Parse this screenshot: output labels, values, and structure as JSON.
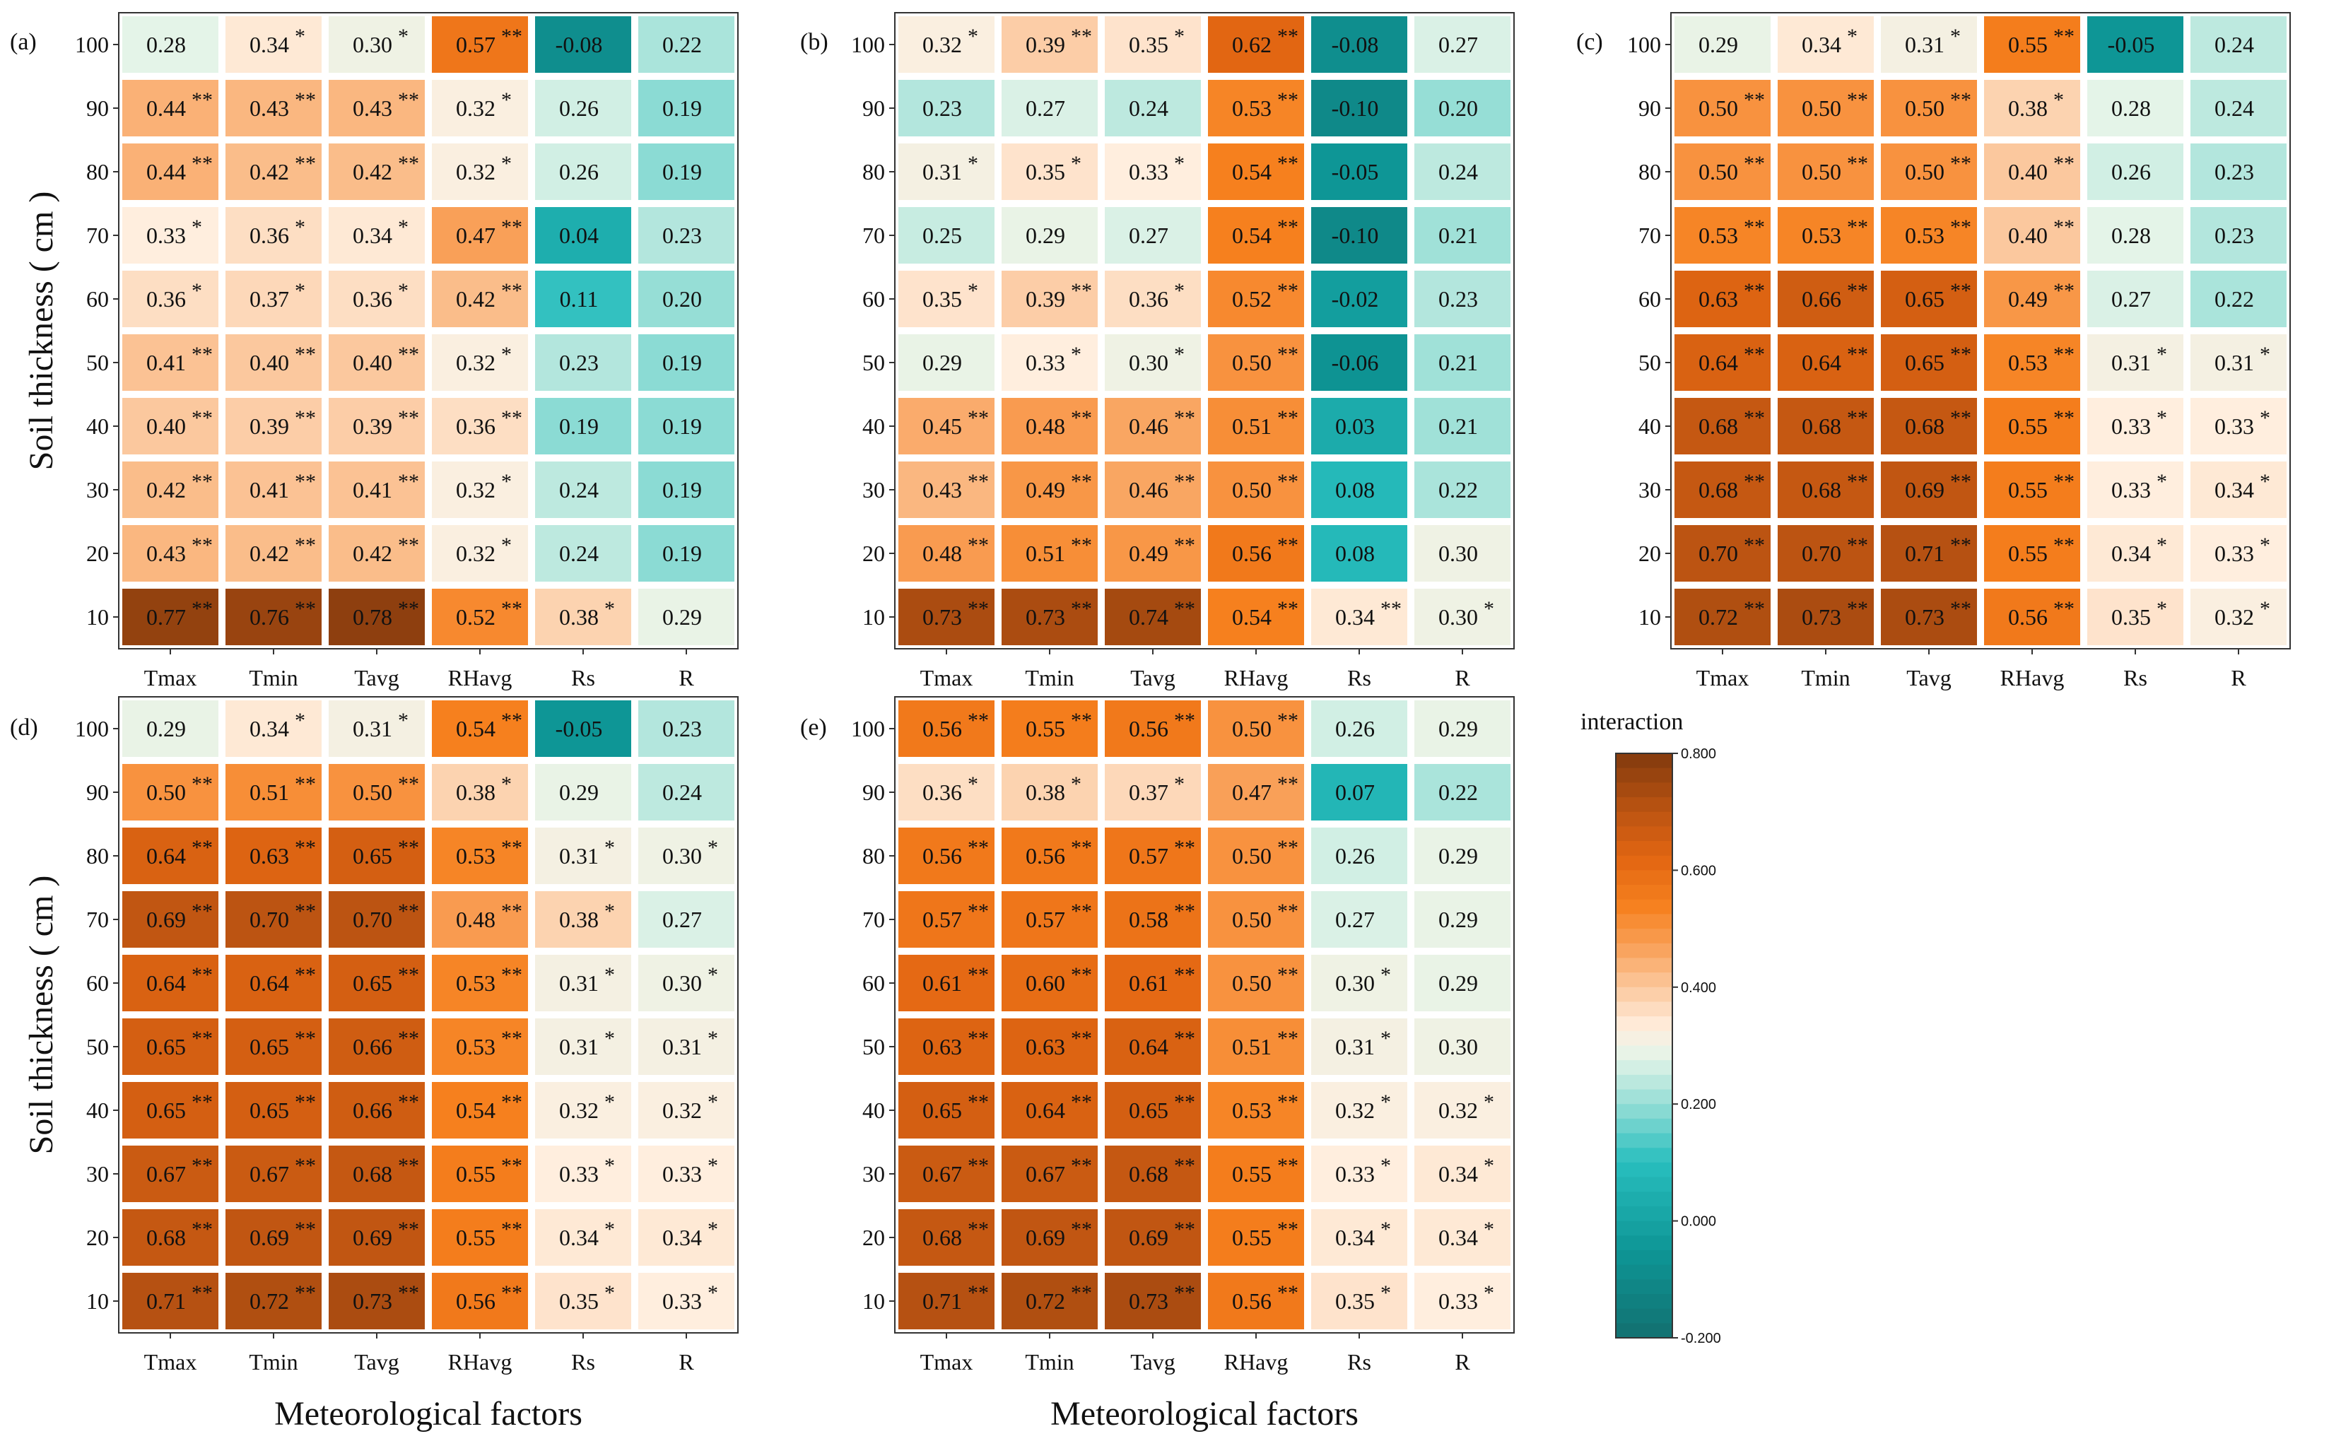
{
  "chart_data": {
    "type": "heatmap",
    "row_labels": [
      "100",
      "90",
      "80",
      "70",
      "60",
      "50",
      "40",
      "30",
      "20",
      "10"
    ],
    "col_labels": [
      "Tmax",
      "Tmin",
      "Tavg",
      "RHavg",
      "Rs",
      "R"
    ],
    "ylabel": "Soil thickness ( cm )",
    "xlabel": "Meteorological factors",
    "colorbar": {
      "title": "interaction",
      "ticks": [
        "0.800",
        "0.600",
        "0.400",
        "0.200",
        "0.000",
        "-0.200"
      ],
      "range": [
        -0.2,
        0.8
      ]
    },
    "panels": [
      {
        "label": "(a)",
        "values": [
          [
            "0.28",
            "0.34",
            "0.30",
            "0.57",
            "-0.08",
            "0.22"
          ],
          [
            "0.44",
            "0.43",
            "0.43",
            "0.32",
            "0.26",
            "0.19"
          ],
          [
            "0.44",
            "0.42",
            "0.42",
            "0.32",
            "0.26",
            "0.19"
          ],
          [
            "0.33",
            "0.36",
            "0.34",
            "0.47",
            "0.04",
            "0.23"
          ],
          [
            "0.36",
            "0.37",
            "0.36",
            "0.42",
            "0.11",
            "0.20"
          ],
          [
            "0.41",
            "0.40",
            "0.40",
            "0.32",
            "0.23",
            "0.19"
          ],
          [
            "0.40",
            "0.39",
            "0.39",
            "0.36",
            "0.19",
            "0.19"
          ],
          [
            "0.42",
            "0.41",
            "0.41",
            "0.32",
            "0.24",
            "0.19"
          ],
          [
            "0.43",
            "0.42",
            "0.42",
            "0.32",
            "0.24",
            "0.19"
          ],
          [
            "0.77",
            "0.76",
            "0.78",
            "0.52",
            "0.38",
            "0.29"
          ]
        ],
        "stars": [
          [
            "",
            "*",
            "*",
            "**",
            "",
            ""
          ],
          [
            "**",
            "**",
            "**",
            "*",
            "",
            ""
          ],
          [
            "**",
            "**",
            "**",
            "*",
            "",
            ""
          ],
          [
            "*",
            "*",
            "*",
            "**",
            "",
            ""
          ],
          [
            "*",
            "*",
            "*",
            "**",
            "",
            ""
          ],
          [
            "**",
            "**",
            "**",
            "*",
            "",
            ""
          ],
          [
            "**",
            "**",
            "**",
            "**",
            "",
            ""
          ],
          [
            "**",
            "**",
            "**",
            "*",
            "",
            ""
          ],
          [
            "**",
            "**",
            "**",
            "*",
            "",
            ""
          ],
          [
            "**",
            "**",
            "**",
            "**",
            "*",
            ""
          ]
        ]
      },
      {
        "label": "(b)",
        "values": [
          [
            "0.32",
            "0.39",
            "0.35",
            "0.62",
            "-0.08",
            "0.27"
          ],
          [
            "0.23",
            "0.27",
            "0.24",
            "0.53",
            "-0.10",
            "0.20"
          ],
          [
            "0.31",
            "0.35",
            "0.33",
            "0.54",
            "-0.05",
            "0.24"
          ],
          [
            "0.25",
            "0.29",
            "0.27",
            "0.54",
            "-0.10",
            "0.21"
          ],
          [
            "0.35",
            "0.39",
            "0.36",
            "0.52",
            "-0.02",
            "0.23"
          ],
          [
            "0.29",
            "0.33",
            "0.30",
            "0.50",
            "-0.06",
            "0.21"
          ],
          [
            "0.45",
            "0.48",
            "0.46",
            "0.51",
            "0.03",
            "0.21"
          ],
          [
            "0.43",
            "0.49",
            "0.46",
            "0.50",
            "0.08",
            "0.22"
          ],
          [
            "0.48",
            "0.51",
            "0.49",
            "0.56",
            "0.08",
            "0.30"
          ],
          [
            "0.73",
            "0.73",
            "0.74",
            "0.54",
            "0.34",
            "0.30"
          ]
        ],
        "stars": [
          [
            "*",
            "**",
            "*",
            "**",
            "",
            ""
          ],
          [
            "",
            "",
            "",
            "**",
            "",
            ""
          ],
          [
            "*",
            "*",
            "*",
            "**",
            "",
            ""
          ],
          [
            "",
            "",
            "",
            "**",
            "",
            ""
          ],
          [
            "*",
            "**",
            "*",
            "**",
            "",
            ""
          ],
          [
            "",
            "*",
            "*",
            "**",
            "",
            ""
          ],
          [
            "**",
            "**",
            "**",
            "**",
            "",
            ""
          ],
          [
            "**",
            "**",
            "**",
            "**",
            "",
            ""
          ],
          [
            "**",
            "**",
            "**",
            "**",
            "",
            ""
          ],
          [
            "**",
            "**",
            "**",
            "**",
            "**",
            "*"
          ]
        ]
      },
      {
        "label": "(c)",
        "values": [
          [
            "0.29",
            "0.34",
            "0.31",
            "0.55",
            "-0.05",
            "0.24"
          ],
          [
            "0.50",
            "0.50",
            "0.50",
            "0.38",
            "0.28",
            "0.24"
          ],
          [
            "0.50",
            "0.50",
            "0.50",
            "0.40",
            "0.26",
            "0.23"
          ],
          [
            "0.53",
            "0.53",
            "0.53",
            "0.40",
            "0.28",
            "0.23"
          ],
          [
            "0.63",
            "0.66",
            "0.65",
            "0.49",
            "0.27",
            "0.22"
          ],
          [
            "0.64",
            "0.64",
            "0.65",
            "0.53",
            "0.31",
            "0.31"
          ],
          [
            "0.68",
            "0.68",
            "0.68",
            "0.55",
            "0.33",
            "0.33"
          ],
          [
            "0.68",
            "0.68",
            "0.69",
            "0.55",
            "0.33",
            "0.34"
          ],
          [
            "0.70",
            "0.70",
            "0.71",
            "0.55",
            "0.34",
            "0.33"
          ],
          [
            "0.72",
            "0.73",
            "0.73",
            "0.56",
            "0.35",
            "0.32"
          ]
        ],
        "stars": [
          [
            "",
            "*",
            "*",
            "**",
            "",
            ""
          ],
          [
            "**",
            "**",
            "**",
            "*",
            "",
            ""
          ],
          [
            "**",
            "**",
            "**",
            "**",
            "",
            ""
          ],
          [
            "**",
            "**",
            "**",
            "**",
            "",
            ""
          ],
          [
            "**",
            "**",
            "**",
            "**",
            "",
            ""
          ],
          [
            "**",
            "**",
            "**",
            "**",
            "*",
            "*"
          ],
          [
            "**",
            "**",
            "**",
            "**",
            "*",
            "*"
          ],
          [
            "**",
            "**",
            "**",
            "**",
            "*",
            "*"
          ],
          [
            "**",
            "**",
            "**",
            "**",
            "*",
            "*"
          ],
          [
            "**",
            "**",
            "**",
            "**",
            "*",
            "*"
          ]
        ]
      },
      {
        "label": "(d)",
        "values": [
          [
            "0.29",
            "0.34",
            "0.31",
            "0.54",
            "-0.05",
            "0.23"
          ],
          [
            "0.50",
            "0.51",
            "0.50",
            "0.38",
            "0.29",
            "0.24"
          ],
          [
            "0.64",
            "0.63",
            "0.65",
            "0.53",
            "0.31",
            "0.30"
          ],
          [
            "0.69",
            "0.70",
            "0.70",
            "0.48",
            "0.38",
            "0.27"
          ],
          [
            "0.64",
            "0.64",
            "0.65",
            "0.53",
            "0.31",
            "0.30"
          ],
          [
            "0.65",
            "0.65",
            "0.66",
            "0.53",
            "0.31",
            "0.31"
          ],
          [
            "0.65",
            "0.65",
            "0.66",
            "0.54",
            "0.32",
            "0.32"
          ],
          [
            "0.67",
            "0.67",
            "0.68",
            "0.55",
            "0.33",
            "0.33"
          ],
          [
            "0.68",
            "0.69",
            "0.69",
            "0.55",
            "0.34",
            "0.34"
          ],
          [
            "0.71",
            "0.72",
            "0.73",
            "0.56",
            "0.35",
            "0.33"
          ]
        ],
        "stars": [
          [
            "",
            "*",
            "*",
            "**",
            "",
            ""
          ],
          [
            "**",
            "**",
            "**",
            "*",
            "",
            ""
          ],
          [
            "**",
            "**",
            "**",
            "**",
            "*",
            "*"
          ],
          [
            "**",
            "**",
            "**",
            "**",
            "*",
            ""
          ],
          [
            "**",
            "**",
            "**",
            "**",
            "*",
            "*"
          ],
          [
            "**",
            "**",
            "**",
            "**",
            "*",
            "*"
          ],
          [
            "**",
            "**",
            "**",
            "**",
            "*",
            "*"
          ],
          [
            "**",
            "**",
            "**",
            "**",
            "*",
            "*"
          ],
          [
            "**",
            "**",
            "**",
            "**",
            "*",
            "*"
          ],
          [
            "**",
            "**",
            "**",
            "**",
            "*",
            "*"
          ]
        ]
      },
      {
        "label": "(e)",
        "values": [
          [
            "0.56",
            "0.55",
            "0.56",
            "0.50",
            "0.26",
            "0.29"
          ],
          [
            "0.36",
            "0.38",
            "0.37",
            "0.47",
            "0.07",
            "0.22"
          ],
          [
            "0.56",
            "0.56",
            "0.57",
            "0.50",
            "0.26",
            "0.29"
          ],
          [
            "0.57",
            "0.57",
            "0.58",
            "0.50",
            "0.27",
            "0.29"
          ],
          [
            "0.61",
            "0.60",
            "0.61",
            "0.50",
            "0.30",
            "0.29"
          ],
          [
            "0.63",
            "0.63",
            "0.64",
            "0.51",
            "0.31",
            "0.30"
          ],
          [
            "0.65",
            "0.64",
            "0.65",
            "0.53",
            "0.32",
            "0.32"
          ],
          [
            "0.67",
            "0.67",
            "0.68",
            "0.55",
            "0.33",
            "0.34"
          ],
          [
            "0.68",
            "0.69",
            "0.69",
            "0.55",
            "0.34",
            "0.34"
          ],
          [
            "0.71",
            "0.72",
            "0.73",
            "0.56",
            "0.35",
            "0.33"
          ]
        ],
        "stars": [
          [
            "**",
            "**",
            "**",
            "**",
            "",
            ""
          ],
          [
            "*",
            "*",
            "*",
            "**",
            "",
            ""
          ],
          [
            "**",
            "**",
            "**",
            "**",
            "",
            ""
          ],
          [
            "**",
            "**",
            "**",
            "**",
            "",
            ""
          ],
          [
            "**",
            "**",
            "**",
            "**",
            "*",
            ""
          ],
          [
            "**",
            "**",
            "**",
            "**",
            "*",
            ""
          ],
          [
            "**",
            "**",
            "**",
            "**",
            "*",
            "*"
          ],
          [
            "**",
            "**",
            "**",
            "**",
            "*",
            "*"
          ],
          [
            "**",
            "**",
            "**",
            "**",
            "*",
            "*"
          ],
          [
            "**",
            "**",
            "**",
            "**",
            "*",
            "*"
          ]
        ]
      }
    ]
  }
}
